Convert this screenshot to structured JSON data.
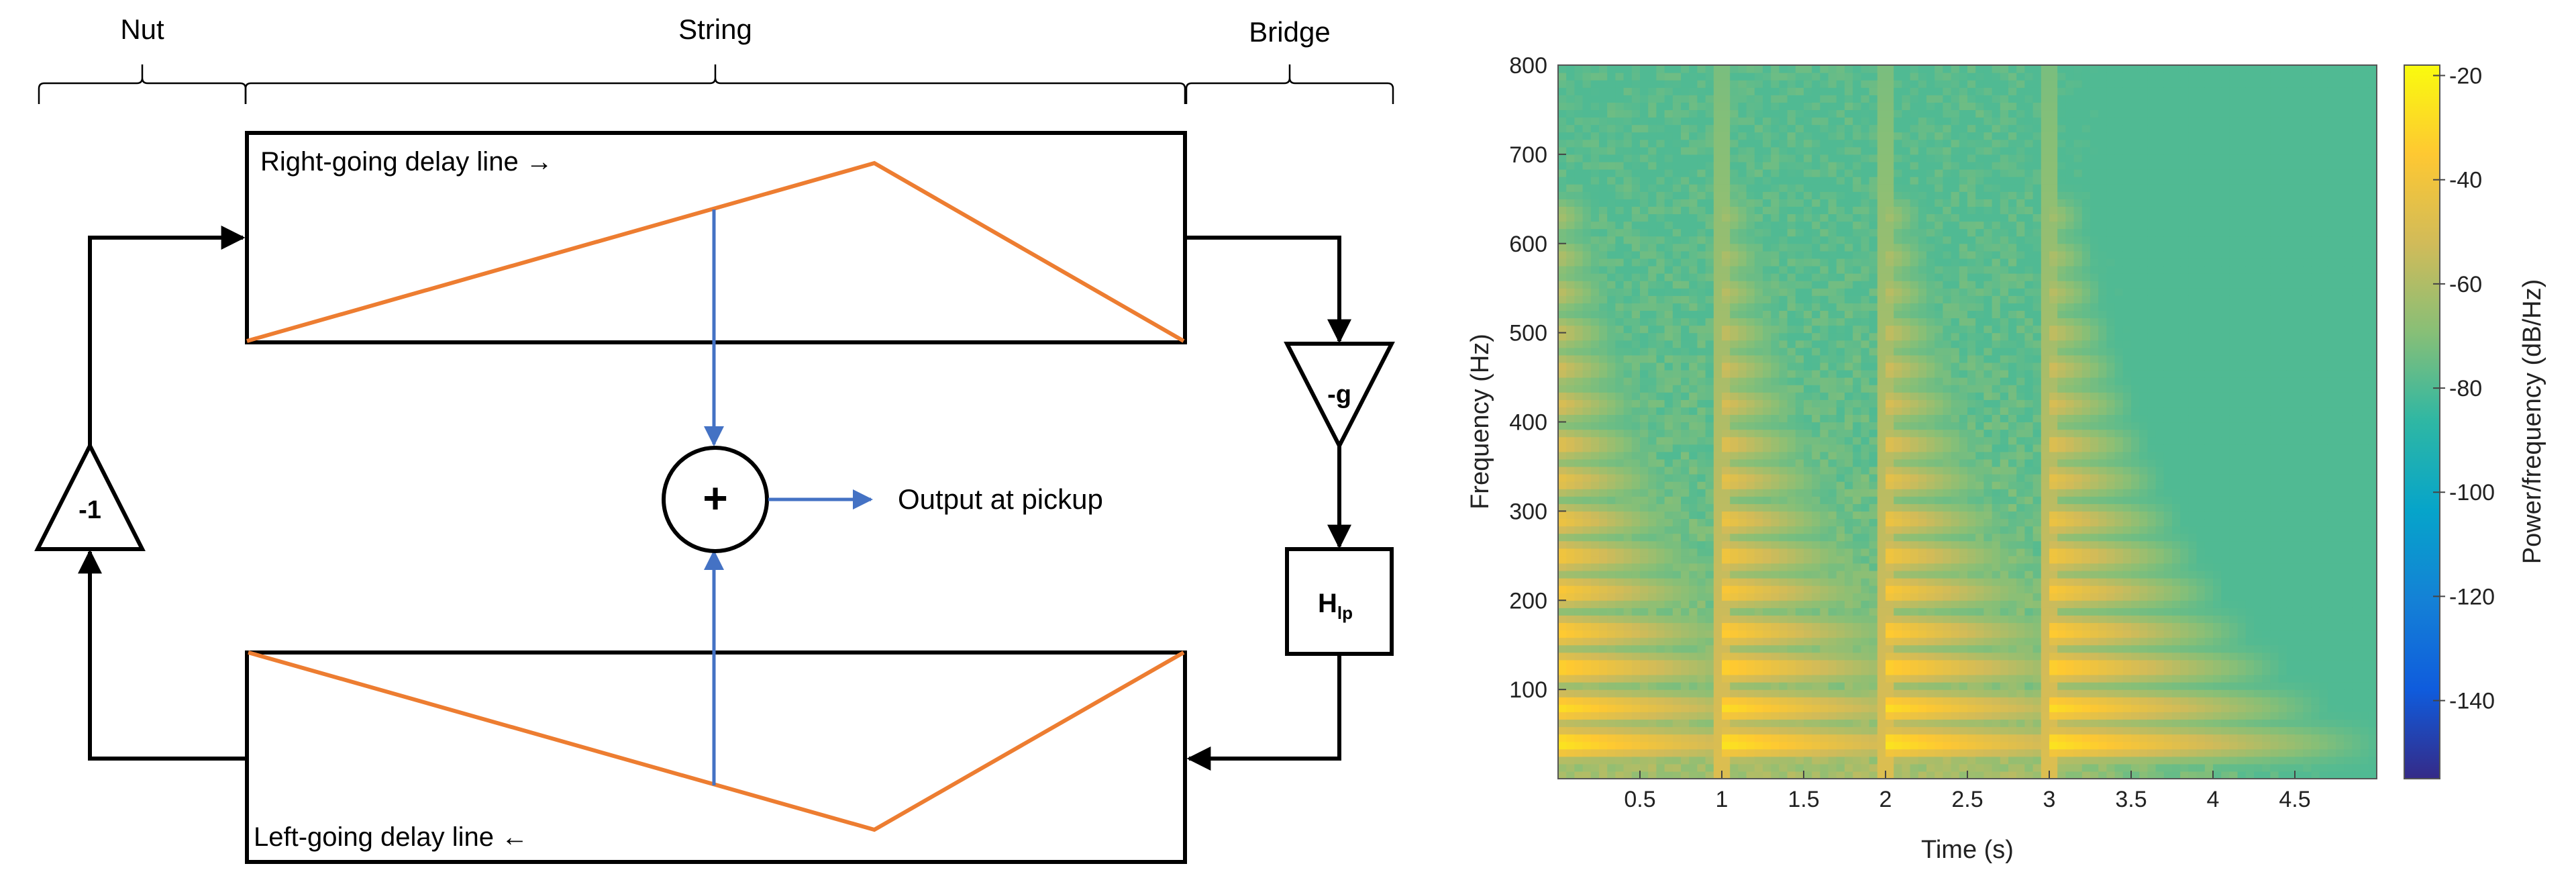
{
  "diagram": {
    "labels": {
      "nut": "Nut",
      "string": "String",
      "bridge": "Bridge",
      "right_delay": "Right-going delay line →",
      "left_delay": "Left-going delay line ←",
      "output": "Output at pickup",
      "neg_one": "-1",
      "neg_g": "-g",
      "filter_main": "H",
      "filter_sub": "lp",
      "sum_symbol": "+"
    },
    "colors": {
      "waveform": "#ED7D31",
      "signal": "#4472C4",
      "line": "#000000"
    }
  },
  "chart_data": {
    "type": "heatmap",
    "title": "",
    "xlabel": "Time (s)",
    "ylabel": "Frequency (Hz)",
    "colorbar_label": "Power/frequency (dB/Hz)",
    "xlim": [
      0,
      5
    ],
    "ylim": [
      0,
      800
    ],
    "clim": [
      -155,
      -18
    ],
    "x_ticks": [
      0.5,
      1,
      1.5,
      2,
      2.5,
      3,
      3.5,
      4,
      4.5
    ],
    "y_ticks": [
      100,
      200,
      300,
      400,
      500,
      600,
      700,
      800
    ],
    "colorbar_ticks": [
      -20,
      -40,
      -60,
      -80,
      -100,
      -120,
      -140
    ],
    "note_onsets_s": [
      0,
      1,
      2,
      3
    ],
    "harmonic_bands_hz": [
      40,
      80,
      125,
      165,
      210,
      250,
      290,
      335,
      375,
      420,
      460,
      500,
      545,
      585,
      630
    ],
    "peak_level_db": -25,
    "background_level_db": -80,
    "decay_db_per_s": 45,
    "colormap": "parula"
  }
}
